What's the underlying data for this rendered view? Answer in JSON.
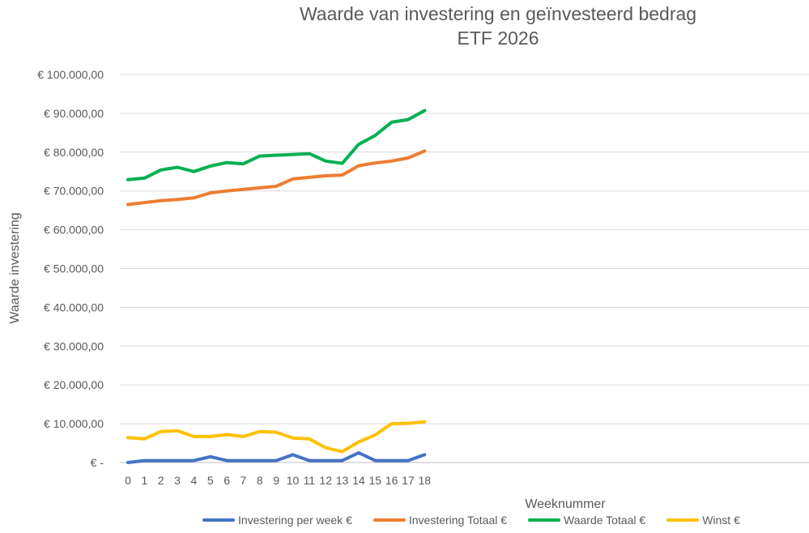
{
  "chart_data": {
    "type": "line",
    "title": "Waarde van investering en geïnvesteerd bedrag",
    "subtitle": "ETF 2026",
    "xlabel": "Weeknummer",
    "ylabel": "Waarde investering",
    "x": [
      0,
      1,
      2,
      3,
      4,
      5,
      6,
      7,
      8,
      9,
      10,
      11,
      12,
      13,
      14,
      15,
      16,
      17,
      18
    ],
    "ylim": [
      0,
      100000
    ],
    "y_tick_labels": [
      "€ -",
      "€ 10.000,00",
      "€ 20.000,00",
      "€ 30.000,00",
      "€ 40.000,00",
      "€ 50.000,00",
      "€ 60.000,00",
      "€ 70.000,00",
      "€ 80.000,00",
      "€ 90.000,00",
      "€ 100.000,00"
    ],
    "grid": true,
    "legend_position": "bottom",
    "series": [
      {
        "name": "Investering per week €",
        "color": "#4472c4",
        "values": [
          0,
          500,
          500,
          500,
          500,
          1500,
          500,
          500,
          500,
          500,
          2000,
          500,
          500,
          500,
          2500,
          500,
          500,
          500,
          2000
        ]
      },
      {
        "name": "Investering Totaal €",
        "color": "#ed7d31",
        "values": [
          66500,
          67000,
          67500,
          67800,
          68200,
          69500,
          70000,
          70400,
          70800,
          71200,
          73100,
          73500,
          73900,
          74100,
          76500,
          77200,
          77700,
          78500,
          80300
        ]
      },
      {
        "name": "Waarde Totaal €",
        "color": "#00b050",
        "values": [
          72900,
          73300,
          75400,
          76100,
          75000,
          76400,
          77300,
          77000,
          79000,
          79200,
          79400,
          79600,
          77700,
          77100,
          82000,
          84300,
          87700,
          88400,
          90700
        ]
      },
      {
        "name": "Winst €",
        "color": "#ffc000",
        "values": [
          6400,
          6100,
          8000,
          8200,
          6700,
          6700,
          7200,
          6700,
          8000,
          7800,
          6300,
          6100,
          3800,
          2800,
          5300,
          7100,
          10000,
          10100,
          10500
        ]
      }
    ]
  }
}
